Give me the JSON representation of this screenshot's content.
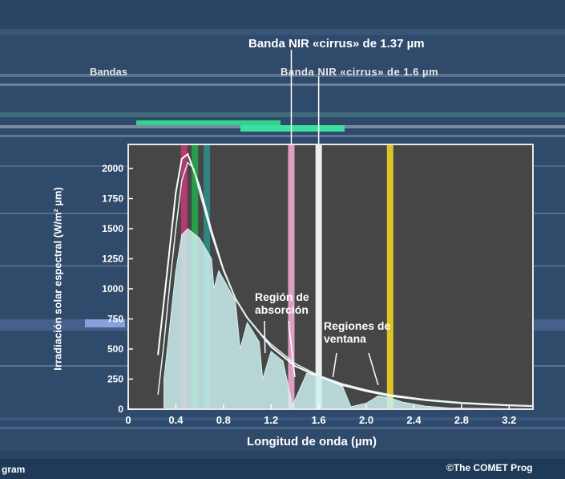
{
  "chart_data": {
    "type": "line",
    "title": "",
    "xlabel": "Longitud de onda (µm)",
    "ylabel": "Irradiación solar espectral (W/m² µm)",
    "xlim": [
      0,
      3.4
    ],
    "ylim": [
      0,
      2200
    ],
    "xticks": [
      "0",
      "0.4",
      "0.8",
      "1.2",
      "1.6",
      "2.0",
      "2.4",
      "2.8",
      "3.2"
    ],
    "yticks": [
      "0",
      "250",
      "500",
      "750",
      "1000",
      "1250",
      "1500",
      "1750",
      "2000"
    ],
    "series": [
      {
        "x": [
          0.25,
          0.3,
          0.35,
          0.4,
          0.45,
          0.5,
          0.6,
          0.7,
          0.8,
          0.9,
          1.0,
          1.2,
          1.4,
          1.6,
          1.8,
          2.0,
          2.2,
          2.5,
          2.8,
          3.0,
          3.2,
          3.4
        ],
        "values": [
          450,
          900,
          1350,
          1800,
          2080,
          2120,
          1850,
          1480,
          1160,
          920,
          760,
          520,
          360,
          270,
          200,
          150,
          110,
          75,
          50,
          40,
          32,
          26
        ]
      },
      {
        "x": [
          0.25,
          0.3,
          0.35,
          0.4,
          0.45,
          0.5,
          0.55,
          0.6,
          0.7,
          0.8,
          0.9,
          1.0,
          1.1,
          1.2,
          1.4,
          1.6,
          1.8,
          2.0,
          2.2,
          2.5,
          2.8,
          3.0,
          3.2,
          3.4
        ],
        "values": [
          120,
          550,
          1050,
          1500,
          1900,
          2050,
          2000,
          1800,
          1450,
          1150,
          920,
          760,
          640,
          540,
          380,
          280,
          210,
          160,
          120,
          80,
          55,
          45,
          35,
          28
        ]
      },
      {
        "x": [
          0.3,
          0.35,
          0.4,
          0.45,
          0.5,
          0.55,
          0.6,
          0.7,
          0.72,
          0.76,
          0.8,
          0.9,
          0.94,
          1.0,
          1.1,
          1.13,
          1.2,
          1.3,
          1.38,
          1.5,
          1.6,
          1.7,
          1.8,
          1.87,
          2.0,
          2.1,
          2.2,
          2.3,
          2.5,
          2.7,
          3.0,
          3.4
        ],
        "values": [
          250,
          700,
          1150,
          1450,
          1500,
          1460,
          1420,
          1250,
          1000,
          1150,
          1080,
          900,
          500,
          720,
          560,
          250,
          480,
          400,
          30,
          300,
          270,
          230,
          190,
          20,
          50,
          110,
          95,
          60,
          25,
          10,
          6,
          4
        ]
      }
    ],
    "bands": [
      {
        "x": 0.47,
        "color": "#c03a70"
      },
      {
        "x": 0.56,
        "color": "#27a64a"
      },
      {
        "x": 0.66,
        "color": "#2e8c87"
      },
      {
        "x": 1.37,
        "color": "#f0a8d0"
      },
      {
        "x": 1.6,
        "color": "#ffffff"
      },
      {
        "x": 2.2,
        "color": "#f0d020"
      }
    ],
    "annotations": [
      "Banda NIR «cirrus» de 1.37 µm",
      "Banda NIR «cirrus» de 1.6 µm",
      "Región de absorción",
      "Regiones de ventana"
    ],
    "grid": false,
    "legend": "none"
  },
  "header": {
    "top_label": "Banda NIR «cirrus» de 1.37 µm",
    "second_label": "Banda NIR «cirrus» de 1.6 µm",
    "left_label": "Bandas"
  },
  "footer": {
    "left": "gram",
    "right": "©The COMET Prog"
  },
  "colors": {
    "plot_bg": "#464646",
    "page_bg": "#2f4a6a",
    "curve": "#ffffff",
    "fill": "#cdeef0"
  }
}
